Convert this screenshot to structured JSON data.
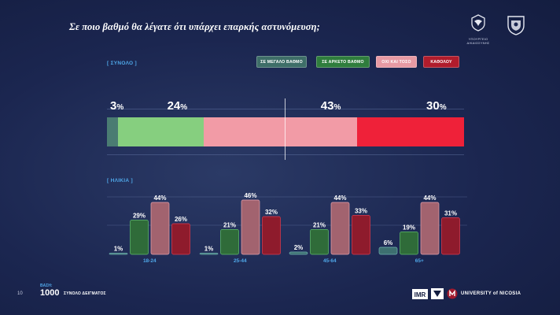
{
  "header": {
    "title": "Σε ποιο βαθμό θα λέγατε ότι υπάρχει επαρκής αστυνόμευση;",
    "gov_logo_caption": "ΥΠΟΥΡΓΕΙΟ ΔΙΚΑΙΟΣΥΝΗΣ"
  },
  "sections": {
    "total_tag": "[ ΣΥΝΟΛΟ ]",
    "age_tag": "[ ΗΛΙΚΙΑ ]"
  },
  "legend": [
    {
      "label": "ΣΕ ΜΕΓΑΛΟ ΒΑΘΜΟ",
      "color": "#3e6e68"
    },
    {
      "label": "ΣΕ ΑΡΚΕΤΟ ΒΑΘΜΟ",
      "color": "#2f7d3d"
    },
    {
      "label": "ΟΧΙ ΚΑΙ ΤΟΣΟ",
      "color": "#e79aa4"
    },
    {
      "label": "ΚΑΘΟΛΟΥ",
      "color": "#b01c2c"
    }
  ],
  "colors": {
    "large": "#4a7c72",
    "enough": "#86cf7f",
    "notmuch": "#f29ba6",
    "none": "#ef2139",
    "age_large": "#3d6f70",
    "age_enough": "#2f6b39",
    "age_notmuch": "#a2636f",
    "age_none": "#8e1b2c"
  },
  "chart_data": [
    {
      "type": "bar",
      "stacked": true,
      "orientation": "horizontal",
      "title": "ΣΥΝΟΛΟ",
      "categories": [
        "ΣΥΝΟΛΟ"
      ],
      "series": [
        {
          "name": "ΣΕ ΜΕΓΑΛΟ ΒΑΘΜΟ",
          "values": [
            3
          ],
          "label": "3"
        },
        {
          "name": "ΣΕ ΑΡΚΕΤΟ ΒΑΘΜΟ",
          "values": [
            24
          ],
          "label": "24"
        },
        {
          "name": "ΟΧΙ ΚΑΙ ΤΟΣΟ",
          "values": [
            43
          ],
          "label": "43"
        },
        {
          "name": "ΚΑΘΟΛΟΥ",
          "values": [
            30
          ],
          "label": "30"
        }
      ],
      "unit": "%",
      "xlim": [
        0,
        100
      ]
    },
    {
      "type": "bar",
      "title": "ΗΛΙΚΙΑ",
      "categories": [
        "18-24",
        "25-44",
        "45-64",
        "65+"
      ],
      "series": [
        {
          "name": "ΣΕ ΜΕΓΑΛΟ ΒΑΘΜΟ",
          "values": [
            1,
            1,
            2,
            6
          ]
        },
        {
          "name": "ΣΕ ΑΡΚΕΤΟ ΒΑΘΜΟ",
          "values": [
            29,
            21,
            21,
            19
          ]
        },
        {
          "name": "ΟΧΙ ΚΑΙ ΤΟΣΟ",
          "values": [
            44,
            46,
            44,
            44
          ]
        },
        {
          "name": "ΚΑΘΟΛΟΥ",
          "values": [
            26,
            32,
            33,
            31
          ]
        }
      ],
      "unit": "%",
      "ylim": [
        0,
        50
      ]
    }
  ],
  "footer": {
    "page_number": "10",
    "sample_label": "ΒΑΣΗ:",
    "sample_value": "1000",
    "sample_caption": "ΣΥΝΟΛΟ ΔΕΙΓΜΑΤΟΣ",
    "imr_logo": "IMR",
    "university": "UNIVERSITY of NICOSIA"
  }
}
